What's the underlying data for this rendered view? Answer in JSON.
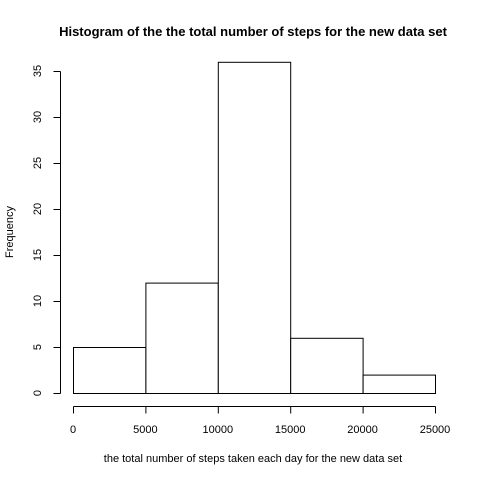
{
  "chart_data": {
    "type": "bar",
    "title": "Histogram of the the total number of steps for the new data set",
    "xlabel": "the total number of steps taken each day for the new data set",
    "ylabel": "Frequency",
    "bins": [
      {
        "from": 0,
        "to": 5000,
        "count": 5
      },
      {
        "from": 5000,
        "to": 10000,
        "count": 12
      },
      {
        "from": 10000,
        "to": 15000,
        "count": 36
      },
      {
        "from": 15000,
        "to": 20000,
        "count": 6
      },
      {
        "from": 20000,
        "to": 25000,
        "count": 2
      }
    ],
    "xlim": [
      0,
      25000
    ],
    "ylim": [
      0,
      35
    ],
    "x_ticks": [
      0,
      5000,
      10000,
      15000,
      20000,
      25000
    ],
    "x_tick_labels": [
      "0",
      "5000",
      "10000",
      "15000",
      "20000",
      "25000"
    ],
    "y_ticks": [
      0,
      5,
      10,
      15,
      20,
      25,
      30,
      35
    ],
    "y_tick_labels": [
      "0",
      "5",
      "10",
      "15",
      "20",
      "25",
      "30",
      "35"
    ],
    "grid": false,
    "legend": "none",
    "colors": {
      "bar_fill": "#ffffff",
      "bar_stroke": "#000000"
    }
  }
}
